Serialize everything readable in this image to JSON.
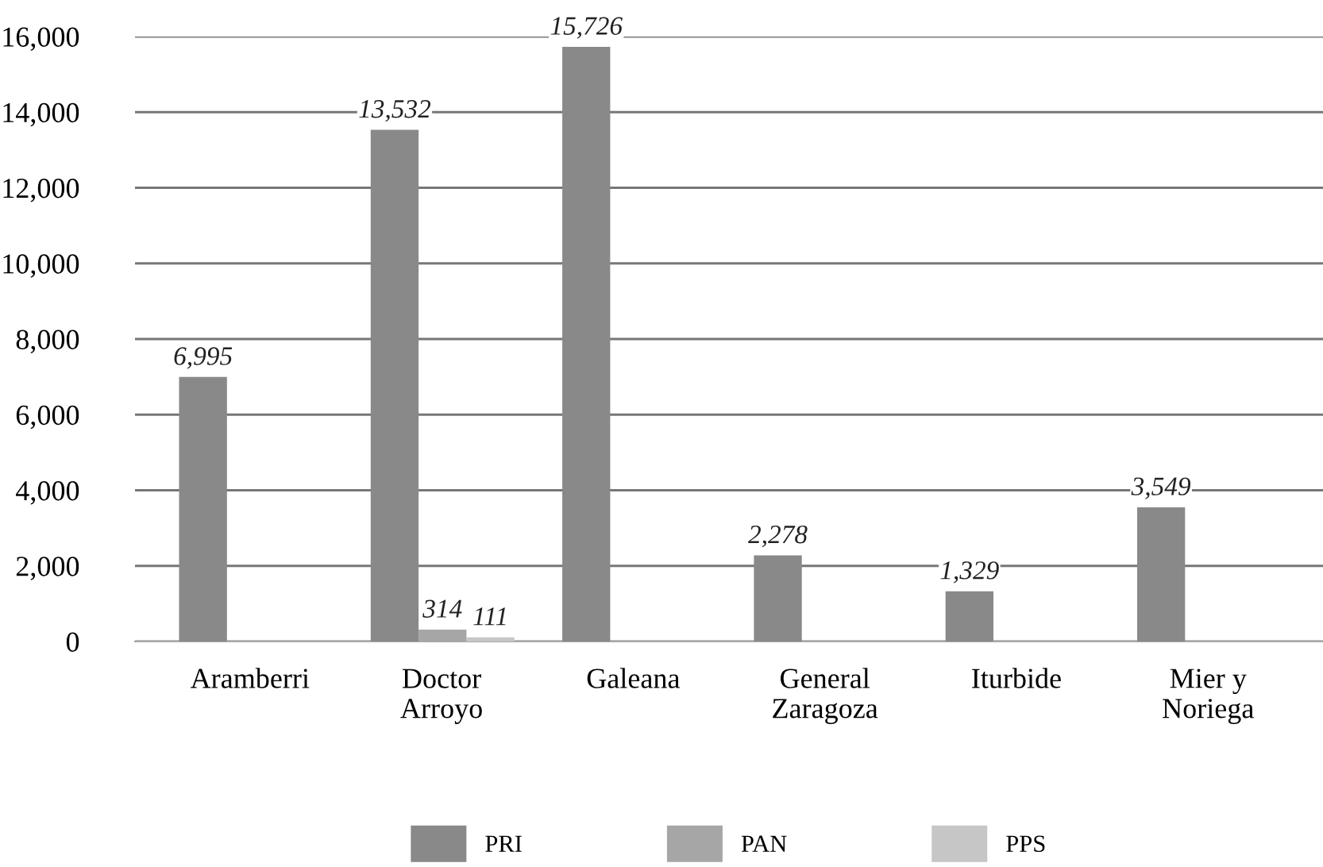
{
  "chart_data": {
    "type": "bar",
    "categories": [
      "Aramberri",
      "Doctor Arroyo",
      "Galeana",
      "General Zaragoza",
      "Iturbide",
      "Mier y Noriega"
    ],
    "series": [
      {
        "name": "PRI",
        "color": "#898989",
        "values": [
          6995,
          13532,
          15726,
          2278,
          1329,
          3549
        ],
        "value_labels": [
          "6,995",
          "13,532",
          "15,726",
          "2,278",
          "1,329",
          "3,549"
        ]
      },
      {
        "name": "PAN",
        "color": "#a6a6a6",
        "values": [
          null,
          314,
          null,
          null,
          null,
          null
        ],
        "value_labels": [
          null,
          "314",
          null,
          null,
          null,
          null
        ]
      },
      {
        "name": "PPS",
        "color": "#c6c6c6",
        "values": [
          null,
          111,
          null,
          null,
          null,
          null
        ],
        "value_labels": [
          null,
          "111",
          null,
          null,
          null,
          null
        ]
      }
    ],
    "ylim": [
      0,
      16000
    ],
    "yticks": [
      {
        "value": 0,
        "label": "0"
      },
      {
        "value": 2000,
        "label": "2,000"
      },
      {
        "value": 4000,
        "label": "4,000"
      },
      {
        "value": 6000,
        "label": "6,000"
      },
      {
        "value": 8000,
        "label": "8,000"
      },
      {
        "value": 10000,
        "label": "10,000"
      },
      {
        "value": 12000,
        "label": "12,000"
      },
      {
        "value": 14000,
        "label": "14,000"
      },
      {
        "value": 16000,
        "label": "16,000"
      }
    ],
    "grid": "y",
    "legend": "bottom"
  }
}
